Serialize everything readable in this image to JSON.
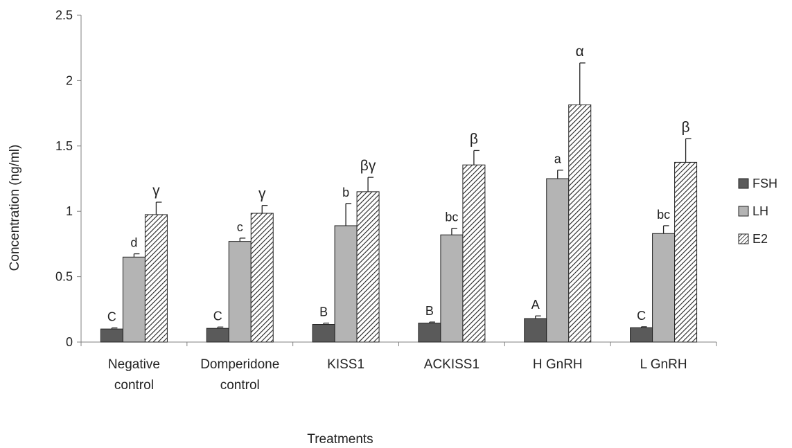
{
  "chart_data": {
    "type": "bar",
    "title": "",
    "xlabel": "Treatments",
    "ylabel": "Concentration (ng/ml)",
    "ylim": [
      0,
      2.5
    ],
    "yticks": [
      "0",
      "0.5",
      "1",
      "1.5",
      "2",
      "2.5"
    ],
    "ytick_values": [
      0,
      0.5,
      1,
      1.5,
      2,
      2.5
    ],
    "grid": false,
    "legend_position": "right",
    "categories": [
      [
        "Negative",
        "control"
      ],
      [
        "Domperidone",
        "control"
      ],
      [
        "KISS1"
      ],
      [
        "ACKISS1"
      ],
      [
        "H GnRH"
      ],
      [
        "L GnRH"
      ]
    ],
    "series": [
      {
        "name": "FSH",
        "pattern": "solid",
        "color": "#5a5a5a",
        "values": [
          0.1,
          0.105,
          0.135,
          0.145,
          0.18,
          0.11
        ],
        "errors": [
          0.008,
          0.01,
          0.01,
          0.008,
          0.02,
          0.007
        ],
        "letters": [
          "C",
          "C",
          "B",
          "B",
          "A",
          "C"
        ]
      },
      {
        "name": "LH",
        "pattern": "solid",
        "color": "#b4b4b4",
        "values": [
          0.65,
          0.77,
          0.89,
          0.82,
          1.25,
          0.83
        ],
        "errors": [
          0.025,
          0.025,
          0.17,
          0.05,
          0.065,
          0.06
        ],
        "letters": [
          "d",
          "c",
          "b",
          "bc",
          "a",
          "bc"
        ]
      },
      {
        "name": "E2",
        "pattern": "hatched",
        "color": "#222222",
        "values": [
          0.975,
          0.985,
          1.15,
          1.355,
          1.815,
          1.375
        ],
        "errors": [
          0.095,
          0.06,
          0.11,
          0.11,
          0.32,
          0.18
        ],
        "letters": [
          "γ",
          "γ",
          "βγ",
          "β",
          "α",
          "β"
        ]
      }
    ]
  }
}
